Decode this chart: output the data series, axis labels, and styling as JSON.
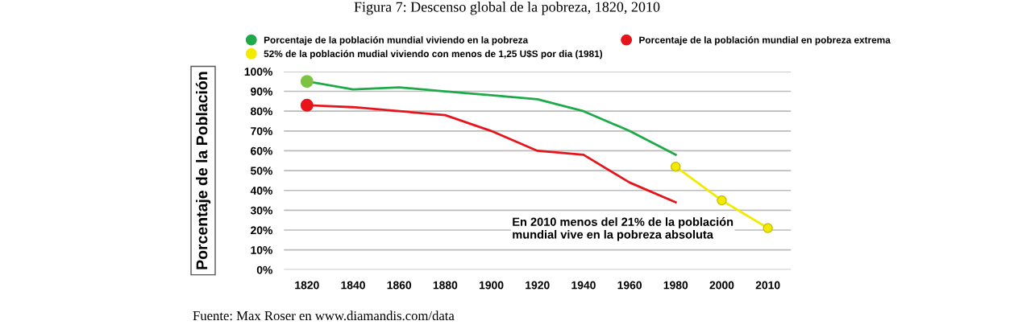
{
  "chart_data": {
    "type": "line",
    "title": "Figura 7: Descenso global de la pobreza, 1820, 2010",
    "ylabel": "Porcentaje de la Población",
    "categories": [
      "1820",
      "1840",
      "1860",
      "1880",
      "1900",
      "1920",
      "1940",
      "1960",
      "1980",
      "2000",
      "2010"
    ],
    "series": [
      {
        "name": "Porcentaje de la población mundial viviendo en la pobreza",
        "color": "#1faa4a",
        "values": [
          95,
          91,
          92,
          90,
          88,
          86,
          80,
          70,
          58,
          null,
          null
        ]
      },
      {
        "name": "Porcentaje de la población mundial en pobreza extrema",
        "color": "#e8141c",
        "values": [
          83,
          82,
          80,
          78,
          70,
          60,
          58,
          44,
          34,
          null,
          null
        ]
      },
      {
        "name": "52% de la población mudial viviendo con menos de 1,25 U$S por dia (1981)",
        "color": "#f2ea00",
        "marker": "circle",
        "values": [
          null,
          null,
          null,
          null,
          null,
          null,
          null,
          null,
          52,
          35,
          21
        ]
      },
      {
        "type": "scatter",
        "color": "#7dc242",
        "values": [
          95,
          null,
          null,
          null,
          null,
          null,
          null,
          null,
          null,
          null,
          null
        ]
      },
      {
        "type": "scatter",
        "color": "#e8141c",
        "values": [
          83,
          null,
          null,
          null,
          null,
          null,
          null,
          null,
          null,
          null,
          null
        ]
      }
    ],
    "ylim": [
      0,
      100
    ],
    "yticks": [
      {
        "value": 0,
        "label": "0%"
      },
      {
        "value": 10,
        "label": "10%"
      },
      {
        "value": 20,
        "label": "20%"
      },
      {
        "value": 30,
        "label": "30%"
      },
      {
        "value": 40,
        "label": "40%"
      },
      {
        "value": 50,
        "label": "50%"
      },
      {
        "value": 60,
        "label": "60%"
      },
      {
        "value": 70,
        "label": "70%"
      },
      {
        "value": 80,
        "label": "80%"
      },
      {
        "value": 90,
        "label": "90%"
      },
      {
        "value": 100,
        "label": "100%"
      }
    ],
    "grid": "y",
    "legend": "top",
    "annotations": [
      "En 2010 menos del 21% de la población\nmundial vive en la pobreza absoluta",
      "Fuente: Max Roser en www.diamandis.com/data"
    ]
  }
}
